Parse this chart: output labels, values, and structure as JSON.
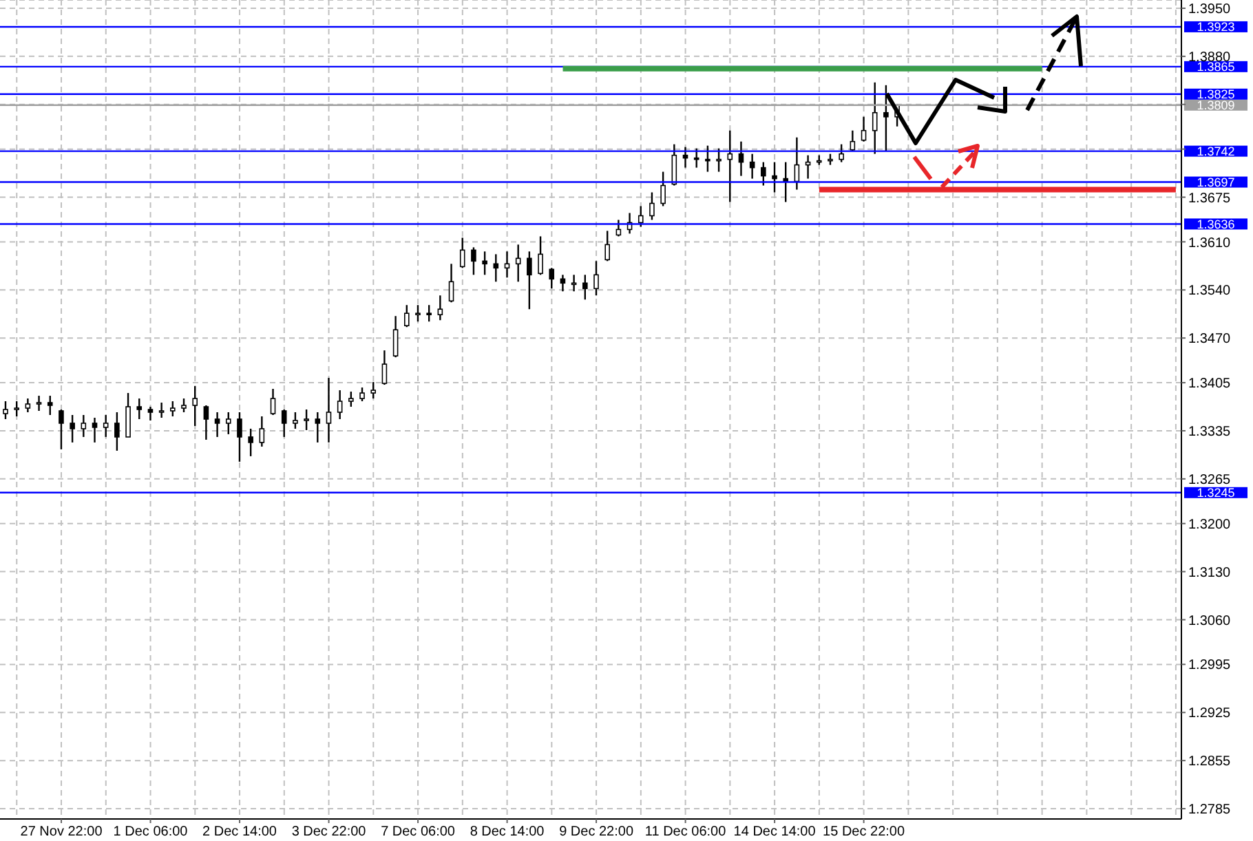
{
  "chart_data": {
    "type": "candlestick",
    "color": "#000000",
    "categories": [
      null,
      null,
      null,
      null,
      null,
      "27 Nov 22:00",
      null,
      null,
      null,
      null,
      null,
      null,
      null,
      "1 Dec 06:00",
      null,
      null,
      null,
      null,
      null,
      null,
      null,
      "2 Dec 14:00",
      null,
      null,
      null,
      null,
      null,
      null,
      null,
      "3 Dec 22:00",
      null,
      null,
      null,
      null,
      null,
      null,
      null,
      "7 Dec 06:00",
      null,
      null,
      null,
      null,
      null,
      null,
      null,
      "8 Dec 14:00",
      null,
      null,
      null,
      null,
      null,
      null,
      null,
      "9 Dec 22:00",
      null,
      null,
      null,
      null,
      null,
      null,
      null,
      "11 Dec 06:00",
      null,
      null,
      null,
      null,
      null,
      null,
      null,
      "14 Dec 14:00",
      null,
      null,
      null,
      null,
      null,
      null,
      null,
      "15 Dec 22:00",
      null,
      null,
      null,
      null,
      null,
      null,
      null,
      null,
      null,
      null,
      null,
      null,
      null,
      null,
      null,
      null,
      null,
      null,
      null,
      null,
      null,
      null,
      null,
      null,
      null,
      null,
      null,
      null
    ],
    "ohlc": [
      [
        1.336,
        1.3378,
        1.3352,
        1.3366
      ],
      [
        1.3366,
        1.3378,
        1.3356,
        1.3368
      ],
      [
        1.3368,
        1.3382,
        1.3362,
        1.3374
      ],
      [
        1.3374,
        1.3386,
        1.3364,
        1.3376
      ],
      [
        1.3376,
        1.3386,
        1.3358,
        1.3372
      ],
      [
        1.3364,
        1.3366,
        1.3308,
        1.3346
      ],
      [
        1.3346,
        1.3358,
        1.3318,
        1.3338
      ],
      [
        1.3338,
        1.3358,
        1.3326,
        1.3346
      ],
      [
        1.3346,
        1.3354,
        1.3318,
        1.334
      ],
      [
        1.334,
        1.3358,
        1.3326,
        1.3346
      ],
      [
        1.3346,
        1.3362,
        1.3306,
        1.3326
      ],
      [
        1.3326,
        1.339,
        1.3326,
        1.337
      ],
      [
        1.337,
        1.3382,
        1.3352,
        1.3366
      ],
      [
        1.3366,
        1.337,
        1.335,
        1.3362
      ],
      [
        1.3362,
        1.3376,
        1.3354,
        1.3364
      ],
      [
        1.3364,
        1.3378,
        1.3356,
        1.3368
      ],
      [
        1.3368,
        1.3382,
        1.3362,
        1.3372
      ],
      [
        1.3372,
        1.34,
        1.3342,
        1.3382
      ],
      [
        1.337,
        1.3372,
        1.3322,
        1.3352
      ],
      [
        1.3352,
        1.3362,
        1.3326,
        1.3346
      ],
      [
        1.3346,
        1.3362,
        1.333,
        1.3352
      ],
      [
        1.3352,
        1.3362,
        1.329,
        1.3326
      ],
      [
        1.3326,
        1.3338,
        1.3298,
        1.3318
      ],
      [
        1.3318,
        1.3356,
        1.3312,
        1.3338
      ],
      [
        1.336,
        1.3396,
        1.3358,
        1.3382
      ],
      [
        1.3364,
        1.3366,
        1.3326,
        1.3346
      ],
      [
        1.3346,
        1.3362,
        1.3338,
        1.335
      ],
      [
        1.335,
        1.3366,
        1.3336,
        1.3352
      ],
      [
        1.3352,
        1.3362,
        1.3318,
        1.3346
      ],
      [
        1.3346,
        1.3412,
        1.3318,
        1.3362
      ],
      [
        1.3362,
        1.3394,
        1.3352,
        1.3378
      ],
      [
        1.3378,
        1.3392,
        1.337,
        1.3382
      ],
      [
        1.3382,
        1.3398,
        1.3378,
        1.339
      ],
      [
        1.339,
        1.3406,
        1.3382,
        1.3394
      ],
      [
        1.3404,
        1.3452,
        1.3402,
        1.3432
      ],
      [
        1.3444,
        1.3502,
        1.3442,
        1.3482
      ],
      [
        1.3488,
        1.3518,
        1.3486,
        1.3506
      ],
      [
        1.3506,
        1.3518,
        1.3494,
        1.3506
      ],
      [
        1.3506,
        1.3518,
        1.3494,
        1.3504
      ],
      [
        1.3504,
        1.3532,
        1.3496,
        1.3512
      ],
      [
        1.3524,
        1.3578,
        1.3522,
        1.3552
      ],
      [
        1.3574,
        1.3616,
        1.3572,
        1.3598
      ],
      [
        1.3598,
        1.3602,
        1.3562,
        1.3582
      ],
      [
        1.3582,
        1.3596,
        1.3562,
        1.3578
      ],
      [
        1.3578,
        1.3592,
        1.3552,
        1.3572
      ],
      [
        1.3572,
        1.3596,
        1.3558,
        1.3578
      ],
      [
        1.3578,
        1.3606,
        1.3552,
        1.3586
      ],
      [
        1.3586,
        1.3596,
        1.3512,
        1.3562
      ],
      [
        1.3564,
        1.3618,
        1.3562,
        1.3592
      ],
      [
        1.357,
        1.3572,
        1.3542,
        1.3556
      ],
      [
        1.3556,
        1.3562,
        1.3538,
        1.355
      ],
      [
        1.355,
        1.3562,
        1.3538,
        1.355
      ],
      [
        1.355,
        1.3562,
        1.3526,
        1.3542
      ],
      [
        1.3542,
        1.3582,
        1.3532,
        1.3562
      ],
      [
        1.3584,
        1.3626,
        1.3582,
        1.3606
      ],
      [
        1.362,
        1.3642,
        1.3618,
        1.3628
      ],
      [
        1.3628,
        1.3652,
        1.3622,
        1.3638
      ],
      [
        1.3638,
        1.3662,
        1.3632,
        1.3648
      ],
      [
        1.3648,
        1.3682,
        1.3642,
        1.3666
      ],
      [
        1.3666,
        1.3712,
        1.3662,
        1.3692
      ],
      [
        1.3694,
        1.3752,
        1.3692,
        1.3736
      ],
      [
        1.3736,
        1.3748,
        1.3718,
        1.3732
      ],
      [
        1.3732,
        1.3746,
        1.3718,
        1.373
      ],
      [
        1.373,
        1.375,
        1.3712,
        1.3728
      ],
      [
        1.3728,
        1.3746,
        1.3712,
        1.373
      ],
      [
        1.373,
        1.3772,
        1.3668,
        1.3738
      ],
      [
        1.3738,
        1.3756,
        1.3706,
        1.3726
      ],
      [
        1.3726,
        1.3738,
        1.3702,
        1.3718
      ],
      [
        1.3718,
        1.3726,
        1.3692,
        1.3706
      ],
      [
        1.3706,
        1.3726,
        1.3682,
        1.3702
      ],
      [
        1.3702,
        1.3726,
        1.3668,
        1.3698
      ],
      [
        1.3698,
        1.3762,
        1.3686,
        1.3722
      ],
      [
        1.3722,
        1.3736,
        1.3702,
        1.3726
      ],
      [
        1.3726,
        1.3736,
        1.3722,
        1.3728
      ],
      [
        1.3728,
        1.3738,
        1.3722,
        1.373
      ],
      [
        1.373,
        1.3752,
        1.3726,
        1.3738
      ],
      [
        1.3744,
        1.3772,
        1.3742,
        1.3756
      ],
      [
        1.3758,
        1.3792,
        1.3756,
        1.3772
      ],
      [
        1.3772,
        1.3842,
        1.3738,
        1.3798
      ],
      [
        1.3798,
        1.3838,
        1.3742,
        1.3792
      ],
      [
        1.3792,
        1.381,
        1.3778,
        1.3809
      ],
      null,
      null,
      null,
      null,
      null,
      null,
      null,
      null,
      null,
      null,
      null,
      null,
      null,
      null,
      null,
      null,
      null,
      null,
      null,
      null,
      null,
      null,
      null,
      null,
      null
    ],
    "series": [
      {
        "type": "line",
        "color": "#3a9e4a",
        "values": [
          null,
          null,
          null,
          null,
          null,
          null,
          null,
          null,
          null,
          null,
          null,
          null,
          null,
          null,
          null,
          null,
          null,
          null,
          null,
          null,
          null,
          null,
          null,
          null,
          null,
          null,
          null,
          null,
          null,
          null,
          null,
          null,
          null,
          null,
          null,
          null,
          null,
          null,
          null,
          null,
          null,
          null,
          null,
          null,
          null,
          null,
          null,
          null,
          null,
          null,
          1.3862,
          1.3862,
          1.3862,
          1.3862,
          1.3862,
          1.3862,
          1.3862,
          1.3862,
          1.3862,
          1.3862,
          1.3862,
          1.3862,
          1.3862,
          1.3862,
          1.3862,
          1.3862,
          1.3862,
          1.3862,
          1.3862,
          1.3862,
          1.3862,
          1.3862,
          1.3862,
          1.3862,
          1.3862,
          1.3862,
          1.3862,
          1.3862,
          1.3862,
          1.3862,
          1.3862,
          1.3862,
          1.3862,
          1.3862,
          1.3862,
          1.3862,
          1.3862,
          1.3862,
          1.3862,
          1.3862,
          1.3862,
          1.3862,
          1.3862,
          1.3862,
          null,
          null,
          null,
          null,
          null,
          null,
          null,
          null,
          null,
          null,
          null,
          null
        ]
      },
      {
        "type": "line",
        "color": "#e8262a",
        "values": [
          null,
          null,
          null,
          null,
          null,
          null,
          null,
          null,
          null,
          null,
          null,
          null,
          null,
          null,
          null,
          null,
          null,
          null,
          null,
          null,
          null,
          null,
          null,
          null,
          null,
          null,
          null,
          null,
          null,
          null,
          null,
          null,
          null,
          null,
          null,
          null,
          null,
          null,
          null,
          null,
          null,
          null,
          null,
          null,
          null,
          null,
          null,
          null,
          null,
          null,
          null,
          null,
          null,
          null,
          null,
          null,
          null,
          null,
          null,
          null,
          null,
          null,
          null,
          null,
          null,
          null,
          null,
          null,
          null,
          null,
          null,
          null,
          null,
          1.3686,
          1.3686,
          1.3686,
          1.3686,
          1.3686,
          1.3686,
          1.3686,
          1.3686,
          1.3686,
          1.3686,
          1.3686,
          1.3686,
          1.3686,
          1.3686,
          1.3686,
          1.3686,
          1.3686,
          1.3686,
          1.3686,
          1.3686,
          1.3686,
          1.3686,
          1.3686,
          1.3686,
          1.3686,
          1.3686,
          1.3686,
          1.3686,
          1.3686,
          1.3686,
          1.3686,
          1.3686,
          1.3686
        ]
      }
    ],
    "ylim": [
      1.277,
      1.3962
    ],
    "yticks": [
      {
        "value": 1.395,
        "label": "1.3950"
      },
      {
        "value": 1.388,
        "label": "1.3880"
      },
      {
        "value": 1.381,
        "label": null
      },
      {
        "value": 1.3745,
        "label": null
      },
      {
        "value": 1.3675,
        "label": "1.3675"
      },
      {
        "value": 1.361,
        "label": "1.3610"
      },
      {
        "value": 1.354,
        "label": "1.3540"
      },
      {
        "value": 1.347,
        "label": "1.3470"
      },
      {
        "value": 1.3405,
        "label": "1.3405"
      },
      {
        "value": 1.3335,
        "label": "1.3335"
      },
      {
        "value": 1.3265,
        "label": "1.3265"
      },
      {
        "value": 1.32,
        "label": "1.3200"
      },
      {
        "value": 1.313,
        "label": "1.3130"
      },
      {
        "value": 1.306,
        "label": "1.3060"
      },
      {
        "value": 1.2995,
        "label": "1.2995"
      },
      {
        "value": 1.2925,
        "label": "1.2925"
      },
      {
        "value": 1.2855,
        "label": "1.2855"
      },
      {
        "value": 1.2785,
        "label": "1.2785"
      }
    ],
    "ref_lines": [
      {
        "axis": "y",
        "value": 1.3923,
        "label": "1.3923",
        "color": "#0000ff"
      },
      {
        "axis": "y",
        "value": 1.3865,
        "label": "1.3865",
        "color": "#0000ff"
      },
      {
        "axis": "y",
        "value": 1.3809,
        "label": "1.3809",
        "color": "#a0a0a0"
      },
      {
        "axis": "y",
        "value": 1.3825,
        "label": "1.3825",
        "color": "#0000ff"
      },
      {
        "axis": "y",
        "value": 1.3742,
        "label": "1.3742",
        "color": "#0000ff"
      },
      {
        "axis": "y",
        "value": 1.3697,
        "label": "1.3697",
        "color": "#0000ff"
      },
      {
        "axis": "y",
        "value": 1.3636,
        "label": "1.3636",
        "color": "#0000ff"
      },
      {
        "axis": "y",
        "value": 1.3245,
        "label": "1.3245",
        "color": "#0000ff"
      }
    ],
    "grid": true
  }
}
